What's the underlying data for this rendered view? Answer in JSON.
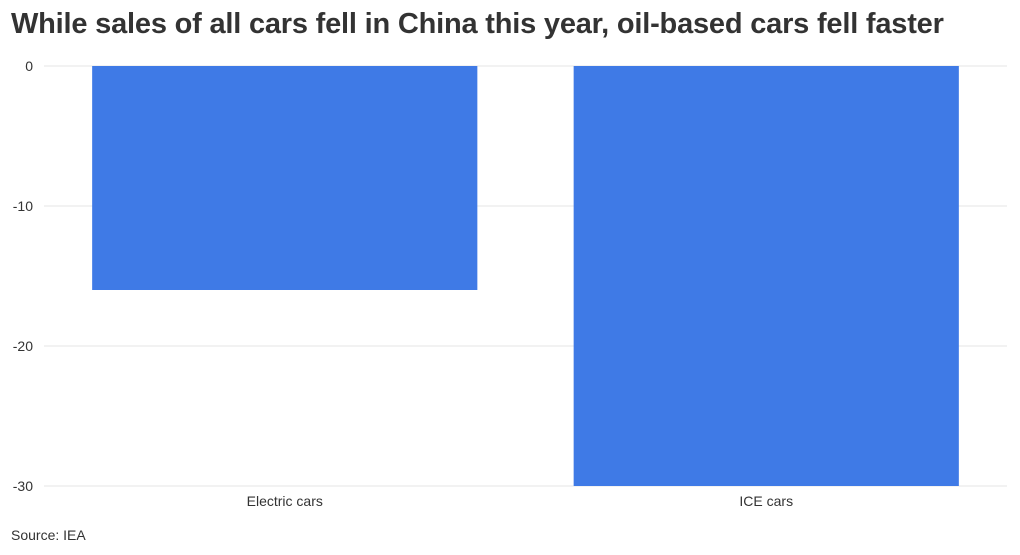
{
  "chart_data": {
    "type": "bar",
    "title": "While sales of all cars fell in China this year, oil-based cars fell faster",
    "categories": [
      "Electric cars",
      "ICE cars"
    ],
    "values": [
      -16,
      -30
    ],
    "yticks": [
      0,
      -10,
      -20,
      -30
    ],
    "ylim": [
      -30,
      0
    ],
    "xlabel": "",
    "ylabel": "",
    "grid": true,
    "bar_color": "#3f7ae6",
    "source": "Source: IEA"
  }
}
